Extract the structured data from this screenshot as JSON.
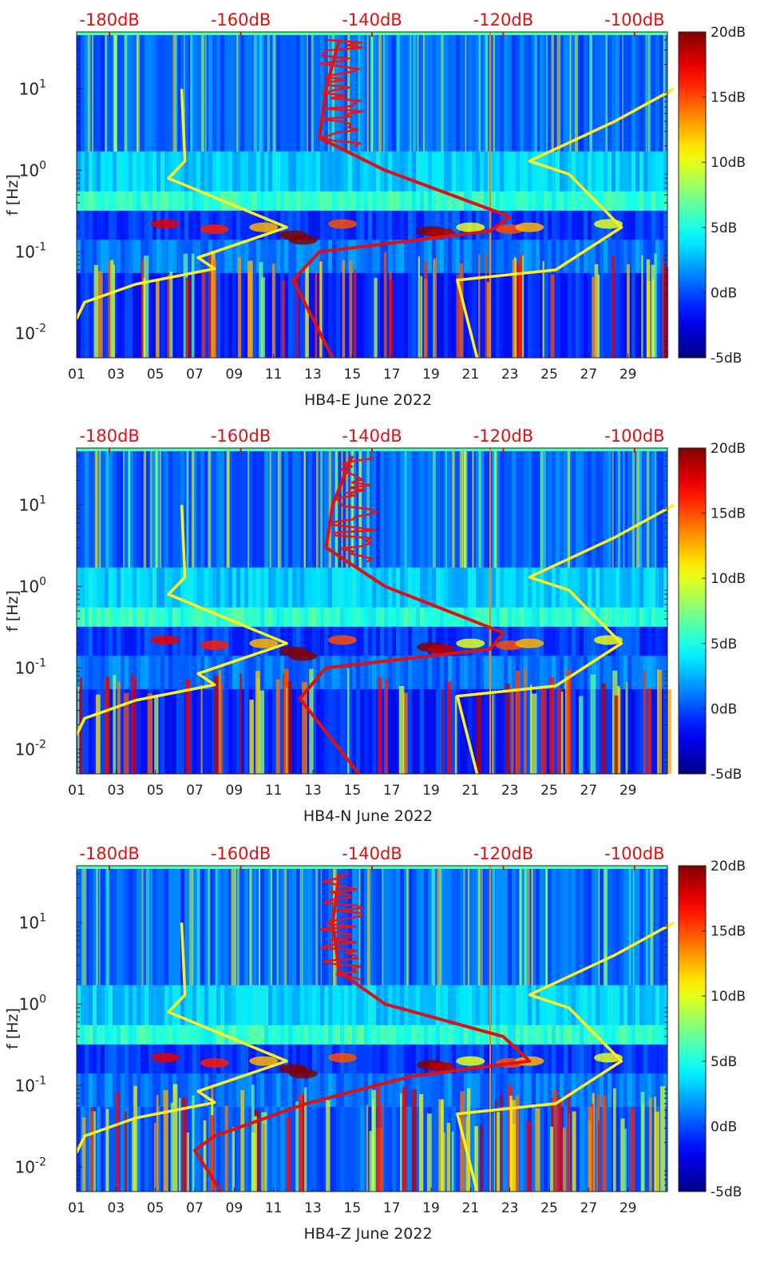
{
  "chart_data": [
    {
      "type": "heatmap",
      "xlabel": "HB4-E June 2022",
      "ylabel": "f [Hz]",
      "x_ticks": [
        "01",
        "03",
        "05",
        "07",
        "09",
        "11",
        "13",
        "15",
        "17",
        "19",
        "21",
        "23",
        "25",
        "27",
        "29"
      ],
      "y_ticks": [
        "10^-2",
        "10^-1",
        "10^0",
        "10^1"
      ],
      "top_ticks": [
        "-180dB",
        "-160dB",
        "-140dB",
        "-120dB",
        "-100dB"
      ],
      "colorbar_ticks": [
        "20dB",
        "15dB",
        "10dB",
        "5dB",
        "0dB",
        "-5dB"
      ],
      "ylim": [
        0.005,
        50
      ],
      "xlim": [
        1,
        31
      ],
      "top_axis_range_db": [
        -185,
        -95
      ],
      "colorbar_range_db": [
        -5,
        20
      ],
      "series": [
        {
          "color": "#ffee22",
          "curve": "low-noise model",
          "points": [
            [
              -185,
              0.015
            ],
            [
              -183.8,
              0.024
            ],
            [
              -176,
              0.04
            ],
            [
              -164,
              0.062
            ],
            [
              -166.5,
              0.085
            ],
            [
              -153,
              0.2
            ],
            [
              -171,
              0.8
            ],
            [
              -168.5,
              1.3
            ],
            [
              -169,
              10
            ]
          ]
        },
        {
          "color": "#ffee22",
          "curve": "high-noise model",
          "points": [
            [
              -124,
              0.005
            ],
            [
              -127,
              0.045
            ],
            [
              -112,
              0.06
            ],
            [
              -102,
              0.2
            ],
            [
              -110,
              0.9
            ],
            [
              -116,
              1.3
            ],
            [
              -103,
              4
            ],
            [
              -94,
              10
            ]
          ]
        },
        {
          "color": "#dd1111",
          "curve": "median PSD",
          "points": [
            [
              -146,
              0.005
            ],
            [
              -152,
              0.045
            ],
            [
              -148,
              0.1
            ],
            [
              -122,
              0.18
            ],
            [
              -119,
              0.27
            ],
            [
              -138,
              1
            ],
            [
              -148,
              2.5
            ],
            [
              -147,
              10
            ],
            [
              -145,
              40
            ]
          ]
        }
      ]
    },
    {
      "type": "heatmap",
      "xlabel": "HB4-N June 2022",
      "ylabel": "f [Hz]",
      "x_ticks": [
        "01",
        "03",
        "05",
        "07",
        "09",
        "11",
        "13",
        "15",
        "17",
        "19",
        "21",
        "23",
        "25",
        "27",
        "29"
      ],
      "y_ticks": [
        "10^-2",
        "10^-1",
        "10^0",
        "10^1"
      ],
      "top_ticks": [
        "-180dB",
        "-160dB",
        "-140dB",
        "-120dB",
        "-100dB"
      ],
      "colorbar_ticks": [
        "20dB",
        "15dB",
        "10dB",
        "5dB",
        "0dB",
        "-5dB"
      ],
      "ylim": [
        0.005,
        50
      ],
      "xlim": [
        1,
        31
      ],
      "top_axis_range_db": [
        -185,
        -95
      ],
      "colorbar_range_db": [
        -5,
        20
      ],
      "series": [
        {
          "color": "#ffee22",
          "curve": "low-noise model",
          "points": [
            [
              -185,
              0.015
            ],
            [
              -183.8,
              0.024
            ],
            [
              -176,
              0.04
            ],
            [
              -164,
              0.062
            ],
            [
              -166.5,
              0.085
            ],
            [
              -153,
              0.2
            ],
            [
              -171,
              0.8
            ],
            [
              -168.5,
              1.3
            ],
            [
              -169,
              10
            ]
          ]
        },
        {
          "color": "#ffee22",
          "curve": "high-noise model",
          "points": [
            [
              -124,
              0.005
            ],
            [
              -127,
              0.045
            ],
            [
              -112,
              0.06
            ],
            [
              -102,
              0.2
            ],
            [
              -110,
              0.9
            ],
            [
              -116,
              1.3
            ],
            [
              -103,
              4
            ],
            [
              -94,
              10
            ]
          ]
        },
        {
          "color": "#dd1111",
          "curve": "median PSD",
          "points": [
            [
              -142,
              0.005
            ],
            [
              -151,
              0.042
            ],
            [
              -147,
              0.1
            ],
            [
              -122,
              0.17
            ],
            [
              -120,
              0.27
            ],
            [
              -138,
              1
            ],
            [
              -147,
              3
            ],
            [
              -146,
              10
            ],
            [
              -143,
              40
            ]
          ]
        }
      ]
    },
    {
      "type": "heatmap",
      "xlabel": "HB4-Z June 2022",
      "ylabel": "f [Hz]",
      "x_ticks": [
        "01",
        "03",
        "05",
        "07",
        "09",
        "11",
        "13",
        "15",
        "17",
        "19",
        "21",
        "23",
        "25",
        "27",
        "29"
      ],
      "y_ticks": [
        "10^-2",
        "10^-1",
        "10^0",
        "10^1"
      ],
      "top_ticks": [
        "-180dB",
        "-160dB",
        "-140dB",
        "-120dB",
        "-100dB"
      ],
      "colorbar_ticks": [
        "20dB",
        "15dB",
        "10dB",
        "5dB",
        "0dB",
        "-5dB"
      ],
      "ylim": [
        0.005,
        50
      ],
      "xlim": [
        1,
        31
      ],
      "top_axis_range_db": [
        -185,
        -95
      ],
      "colorbar_range_db": [
        -5,
        20
      ],
      "series": [
        {
          "color": "#ffee22",
          "curve": "low-noise model",
          "points": [
            [
              -185,
              0.015
            ],
            [
              -183.8,
              0.024
            ],
            [
              -176,
              0.04
            ],
            [
              -164,
              0.062
            ],
            [
              -166.5,
              0.085
            ],
            [
              -153,
              0.2
            ],
            [
              -171,
              0.8
            ],
            [
              -168.5,
              1.3
            ],
            [
              -169,
              10
            ]
          ]
        },
        {
          "color": "#ffee22",
          "curve": "high-noise model",
          "points": [
            [
              -124,
              0.005
            ],
            [
              -127,
              0.045
            ],
            [
              -112,
              0.06
            ],
            [
              -102,
              0.2
            ],
            [
              -110,
              0.9
            ],
            [
              -116,
              1.3
            ],
            [
              -103,
              4
            ],
            [
              -94,
              10
            ]
          ]
        },
        {
          "color": "#dd1111",
          "curve": "median PSD",
          "points": [
            [
              -163,
              0.005
            ],
            [
              -167,
              0.016
            ],
            [
              -164,
              0.024
            ],
            [
              -150,
              0.06
            ],
            [
              -134,
              0.13
            ],
            [
              -116,
              0.2
            ],
            [
              -120,
              0.4
            ],
            [
              -138,
              1
            ],
            [
              -145,
              2.5
            ],
            [
              -146,
              10
            ],
            [
              -145,
              40
            ]
          ]
        }
      ]
    }
  ]
}
